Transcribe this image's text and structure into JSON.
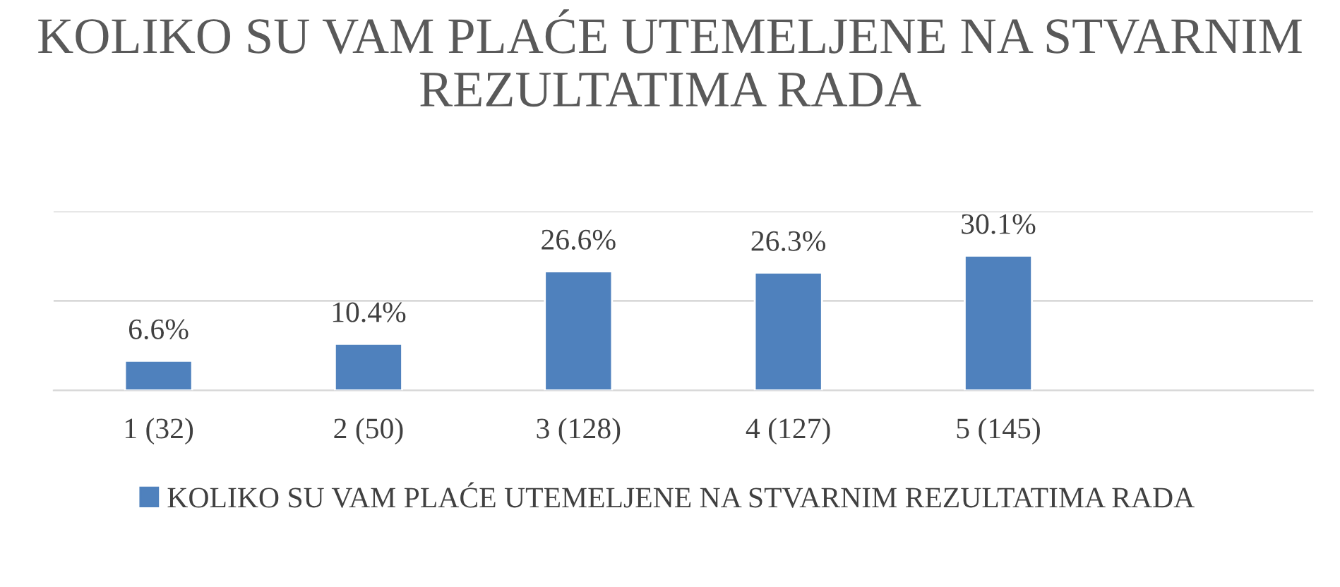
{
  "chart_data": {
    "type": "bar",
    "title": "KOLIKO SU VAM PLAĆE UTEMELJENE NA STVARNIM REZULTATIMA RADA",
    "categories": [
      "1 (32)",
      "2 (50)",
      "3 (128)",
      "4 (127)",
      "5 (145)",
      null
    ],
    "series": [
      {
        "name": "KOLIKO SU VAM PLAĆE UTEMELJENE NA STVARNIM REZULTATIMA RADA",
        "color": "#4f81bd",
        "values": [
          6.6,
          10.4,
          26.6,
          26.3,
          30.1,
          null
        ],
        "value_labels": [
          "6.6%",
          "10.4%",
          "26.6%",
          "26.3%",
          "30.1%",
          null
        ]
      }
    ],
    "ylim": [
      0,
      40
    ],
    "yticks": [
      {
        "value": 0,
        "label": null
      },
      {
        "value": 20,
        "label": null
      },
      {
        "value": 40,
        "label": null
      }
    ],
    "tick_labels": "x",
    "grid": "y",
    "legend": "bottom"
  }
}
